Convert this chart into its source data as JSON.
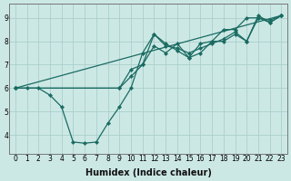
{
  "xlabel": "Humidex (Indice chaleur)",
  "ylabel": "",
  "bg_color": "#cce8e5",
  "line_color": "#1a6b62",
  "marker": "D",
  "marker_size": 2.2,
  "line_width": 0.9,
  "series": [
    {
      "x": [
        0,
        1,
        2,
        3,
        4,
        5,
        6,
        7,
        8,
        9,
        10,
        11,
        12,
        13,
        14,
        15,
        16,
        17,
        18,
        19,
        20,
        21,
        22,
        23
      ],
      "y": [
        6.0,
        6.0,
        6.0,
        5.7,
        5.2,
        3.7,
        3.65,
        3.7,
        4.5,
        5.2,
        6.0,
        7.5,
        8.3,
        7.9,
        7.6,
        7.3,
        7.9,
        8.0,
        8.5,
        8.5,
        9.0,
        9.0,
        8.8,
        9.1
      ]
    },
    {
      "x": [
        0,
        23
      ],
      "y": [
        6.0,
        9.1
      ]
    },
    {
      "x": [
        0,
        9,
        10,
        11,
        12,
        13,
        14,
        15,
        16,
        17,
        18,
        19,
        20,
        21,
        22,
        23
      ],
      "y": [
        6.0,
        6.0,
        6.8,
        7.0,
        8.3,
        7.8,
        7.7,
        7.5,
        7.7,
        7.9,
        8.1,
        8.4,
        8.0,
        9.1,
        8.8,
        9.1
      ]
    },
    {
      "x": [
        0,
        9,
        10,
        11,
        12,
        13,
        14,
        15,
        16,
        17,
        18,
        19,
        20,
        21,
        22,
        23
      ],
      "y": [
        6.0,
        6.0,
        6.5,
        7.0,
        7.8,
        7.5,
        7.9,
        7.3,
        7.5,
        8.0,
        8.0,
        8.3,
        8.0,
        9.0,
        8.9,
        9.1
      ]
    }
  ],
  "xlim": [
    -0.5,
    23.5
  ],
  "ylim": [
    3.2,
    9.6
  ],
  "xticks": [
    0,
    1,
    2,
    3,
    4,
    5,
    6,
    7,
    8,
    9,
    10,
    11,
    12,
    13,
    14,
    15,
    16,
    17,
    18,
    19,
    20,
    21,
    22,
    23
  ],
  "yticks": [
    4,
    5,
    6,
    7,
    8,
    9
  ],
  "grid_color": "#aacfcb",
  "tick_fontsize": 5.5,
  "xlabel_fontsize": 7.0
}
